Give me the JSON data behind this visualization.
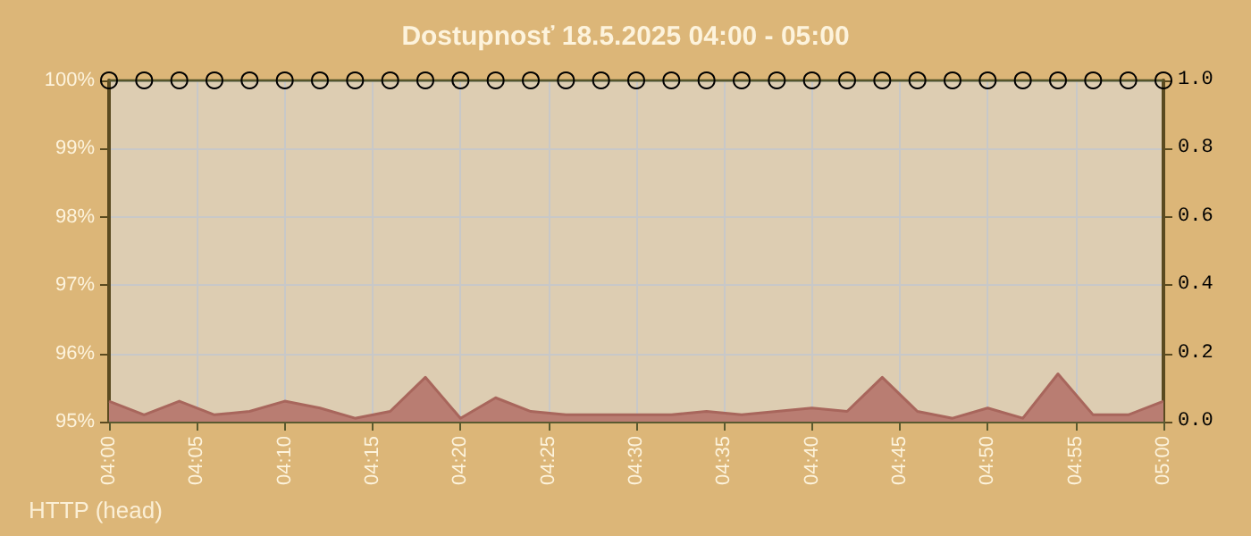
{
  "chart_data": {
    "type": "line",
    "title": "Dostupnosť 18.5.2025 04:00 - 05:00",
    "x": [
      "2025-05-18T04:00",
      "2025-05-18T04:02",
      "2025-05-18T04:04",
      "2025-05-18T04:06",
      "2025-05-18T04:08",
      "2025-05-18T04:10",
      "2025-05-18T04:12",
      "2025-05-18T04:14",
      "2025-05-18T04:16",
      "2025-05-18T04:18",
      "2025-05-18T04:20",
      "2025-05-18T04:22",
      "2025-05-18T04:24",
      "2025-05-18T04:26",
      "2025-05-18T04:28",
      "2025-05-18T04:30",
      "2025-05-18T04:32",
      "2025-05-18T04:34",
      "2025-05-18T04:36",
      "2025-05-18T04:38",
      "2025-05-18T04:40",
      "2025-05-18T04:42",
      "2025-05-18T04:44",
      "2025-05-18T04:46",
      "2025-05-18T04:48",
      "2025-05-18T04:50",
      "2025-05-18T04:52",
      "2025-05-18T04:54",
      "2025-05-18T04:56",
      "2025-05-18T04:58",
      "2025-05-18T05:00"
    ],
    "series": [
      {
        "type": "area",
        "axis": "y2",
        "color": "#b97d72",
        "marker": "none",
        "values": [
          0.06,
          0.02,
          0.06,
          0.02,
          0.03,
          0.06,
          0.04,
          0.01,
          0.03,
          0.13,
          0.01,
          0.07,
          0.03,
          0.02,
          0.02,
          0.02,
          0.02,
          0.03,
          0.02,
          0.03,
          0.04,
          0.03,
          0.13,
          0.03,
          0.01,
          0.04,
          0.01,
          0.14,
          0.02,
          0.02,
          0.06
        ]
      },
      {
        "color": "#55552a",
        "marker": "circle",
        "values": [
          100,
          100,
          100,
          100,
          100,
          100,
          100,
          100,
          100,
          100,
          100,
          100,
          100,
          100,
          100,
          100,
          100,
          100,
          100,
          100,
          100,
          100,
          100,
          100,
          100,
          100,
          100,
          100,
          100,
          100,
          100
        ]
      }
    ],
    "xlim": [
      "2025-05-18T04:00",
      "2025-05-18T05:00"
    ],
    "xticks": [
      {
        "value": "2025-05-18T04:00",
        "label": "04:00"
      },
      {
        "value": "2025-05-18T04:05",
        "label": "04:05"
      },
      {
        "value": "2025-05-18T04:10",
        "label": "04:10"
      },
      {
        "value": "2025-05-18T04:15",
        "label": "04:15"
      },
      {
        "value": "2025-05-18T04:20",
        "label": "04:20"
      },
      {
        "value": "2025-05-18T04:25",
        "label": "04:25"
      },
      {
        "value": "2025-05-18T04:30",
        "label": "04:30"
      },
      {
        "value": "2025-05-18T04:35",
        "label": "04:35"
      },
      {
        "value": "2025-05-18T04:40",
        "label": "04:40"
      },
      {
        "value": "2025-05-18T04:45",
        "label": "04:45"
      },
      {
        "value": "2025-05-18T04:50",
        "label": "04:50"
      },
      {
        "value": "2025-05-18T04:55",
        "label": "04:55"
      },
      {
        "value": "2025-05-18T05:00",
        "label": "05:00"
      }
    ],
    "ylim": [
      95,
      100
    ],
    "yticks": [
      {
        "value": 95,
        "label": "95%"
      },
      {
        "value": 96,
        "label": "96%"
      },
      {
        "value": 97,
        "label": "97%"
      },
      {
        "value": 98,
        "label": "98%"
      },
      {
        "value": 99,
        "label": "99%"
      },
      {
        "value": 100,
        "label": "100%"
      }
    ],
    "y2lim": [
      0,
      1
    ],
    "y2ticks": [
      {
        "value": 0,
        "label": "0.0"
      },
      {
        "value": 0.2,
        "label": "0.2"
      },
      {
        "value": 0.4,
        "label": "0.4"
      },
      {
        "value": 0.6,
        "label": "0.6"
      },
      {
        "value": 0.8,
        "label": "0.8"
      },
      {
        "value": 1,
        "label": "1.0"
      }
    ],
    "grid": true,
    "annotations": [
      "HTTP (head)"
    ]
  }
}
